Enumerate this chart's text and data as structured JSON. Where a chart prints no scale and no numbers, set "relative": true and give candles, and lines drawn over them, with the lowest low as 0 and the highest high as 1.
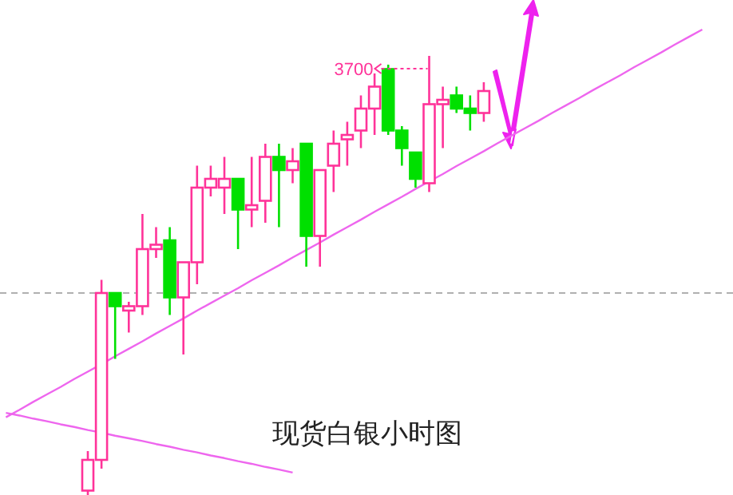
{
  "chart_data": {
    "type": "candlestick",
    "relative": true,
    "categories": [
      null,
      null,
      null,
      null,
      null,
      null,
      null,
      null,
      null,
      null,
      null,
      null,
      null,
      null,
      null,
      null,
      null,
      null,
      null,
      null,
      null,
      null,
      null,
      null,
      null,
      null,
      null,
      null,
      null,
      null,
      null,
      null,
      null,
      null,
      null,
      null,
      null,
      null,
      null,
      null,
      null,
      null,
      null,
      null,
      null,
      null,
      null,
      null,
      null,
      null,
      null,
      null
    ],
    "ohlc": [
      null,
      null,
      null,
      null,
      null,
      null,
      [
        0.01,
        0.1,
        0,
        0.08
      ],
      [
        0.08,
        0.49,
        0.06,
        0.46
      ],
      [
        0.46,
        0.46,
        0.31,
        0.43
      ],
      [
        0.42,
        0.44,
        0.37,
        0.43
      ],
      [
        0.43,
        0.64,
        0.41,
        0.56
      ],
      [
        0.56,
        0.61,
        0.54,
        0.57
      ],
      [
        0.58,
        0.61,
        0.41,
        0.45
      ],
      [
        0.45,
        0.53,
        0.32,
        0.53
      ],
      [
        0.53,
        0.75,
        0.48,
        0.7
      ],
      [
        0.7,
        0.75,
        0.68,
        0.72
      ],
      [
        0.7,
        0.77,
        0.64,
        0.72
      ],
      [
        0.72,
        0.72,
        0.56,
        0.65
      ],
      [
        0.65,
        0.77,
        0.61,
        0.66
      ],
      [
        0.67,
        0.8,
        0.62,
        0.77
      ],
      [
        0.77,
        0.8,
        0.61,
        0.74
      ],
      [
        0.74,
        0.79,
        0.71,
        0.76
      ],
      [
        0.8,
        0.8,
        0.52,
        0.59
      ],
      [
        0.59,
        0.74,
        0.52,
        0.74
      ],
      [
        0.75,
        0.83,
        0.69,
        0.8
      ],
      [
        0.81,
        0.85,
        0.75,
        0.82
      ],
      [
        0.83,
        0.91,
        0.79,
        0.88
      ],
      [
        0.88,
        0.96,
        0.82,
        0.93
      ],
      [
        0.97,
        0.98,
        0.82,
        0.83
      ],
      [
        0.83,
        0.84,
        0.75,
        0.79
      ],
      [
        0.78,
        0.78,
        0.7,
        0.72
      ],
      [
        0.71,
        1,
        0.69,
        0.89
      ],
      [
        0.89,
        0.93,
        0.79,
        0.9
      ],
      [
        0.91,
        0.93,
        0.87,
        0.88
      ],
      [
        0.88,
        0.91,
        0.83,
        0.87
      ],
      [
        0.87,
        0.94,
        0.85,
        0.92
      ],
      null,
      null,
      null,
      null,
      null,
      null,
      null,
      null,
      null,
      null,
      null,
      null,
      null,
      null,
      null,
      null
    ],
    "colors": [
      null,
      null,
      null,
      null,
      null,
      null,
      "#ff3399",
      "#ff3399",
      "#00e000",
      "#ff3399",
      "#ff3399",
      "#ff3399",
      "#00e000",
      "#ff3399",
      "#ff3399",
      "#ff3399",
      "#ff3399",
      "#00e000",
      "#ff3399",
      "#ff3399",
      "#00e000",
      "#ff3399",
      "#00e000",
      "#ff3399",
      "#ff3399",
      "#ff3399",
      "#ff3399",
      "#ff3399",
      "#00e000",
      "#00e000",
      "#00e000",
      "#ff3399",
      "#ff3399",
      "#00e000",
      "#00e000",
      "#ff3399",
      null,
      null,
      null,
      null,
      null,
      null,
      null,
      null,
      null,
      null,
      null,
      null,
      null,
      null,
      null,
      null
    ],
    "series": [
      {
        "type": "line",
        "color": "#ee66ee",
        "values": [
          0.177,
          0.194,
          0.212,
          0.229,
          0.246,
          0.264,
          0.281,
          0.298,
          0.316,
          0.333,
          0.35,
          0.368,
          0.385,
          0.402,
          0.42,
          0.437,
          0.454,
          0.471,
          0.489,
          0.506,
          0.523,
          0.541,
          0.558,
          0.575,
          0.593,
          0.61,
          0.627,
          0.645,
          0.662,
          0.679,
          0.697,
          0.714,
          0.731,
          0.749,
          0.766,
          0.783,
          0.801,
          0.818,
          0.835,
          0.852,
          0.87,
          0.887,
          0.904,
          0.922,
          0.939,
          0.956,
          0.974,
          0.991,
          1.008,
          1.026,
          1.043,
          1.06
        ]
      },
      {
        "type": "line",
        "color": "#ee66ee",
        "values": [
          0.187,
          0.181,
          0.174,
          0.168,
          0.161,
          0.155,
          0.148,
          0.142,
          0.135,
          0.129,
          0.123,
          0.116,
          0.11,
          0.103,
          0.097,
          0.09,
          0.084,
          0.077,
          0.071,
          0.064,
          0.058,
          0.051,
          null,
          null,
          null,
          null,
          null,
          null,
          null,
          null,
          null,
          null,
          null,
          null,
          null,
          null,
          null,
          null,
          null,
          null,
          null,
          null,
          null,
          null,
          null,
          null,
          null,
          null,
          null,
          null,
          null,
          null
        ]
      }
    ],
    "ref_lines": [
      {
        "axis": "y",
        "value": 0.46,
        "color": "#b0b0b0",
        "line_style": "dashed"
      }
    ],
    "annotations": [
      "3700",
      "现货白银小时图"
    ]
  }
}
